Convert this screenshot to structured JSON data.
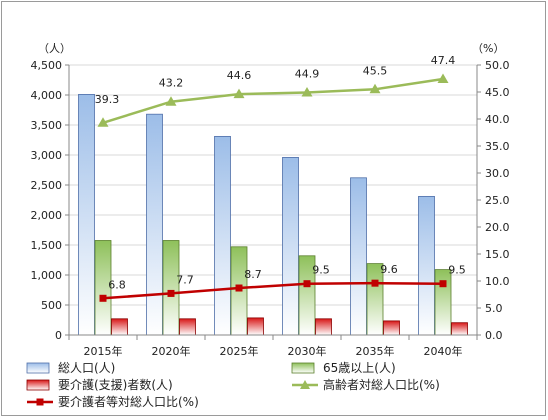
{
  "chart_data": {
    "type": "bar",
    "categories": [
      "2015年",
      "2020年",
      "2025年",
      "2030年",
      "2035年",
      "2040年"
    ],
    "y_left": {
      "unit": "（人）",
      "ylim": [
        0,
        4500
      ],
      "step": 500,
      "ticks": [
        "0",
        "500",
        "1,000",
        "1,500",
        "2,000",
        "2,500",
        "3,000",
        "3,500",
        "4,000",
        "4,500"
      ]
    },
    "y_right": {
      "unit": "（%）",
      "ylim": [
        0,
        50
      ],
      "step": 5,
      "ticks": [
        "0.0",
        "5.0",
        "10.0",
        "15.0",
        "20.0",
        "25.0",
        "30.0",
        "35.0",
        "40.0",
        "45.0",
        "50.0"
      ]
    },
    "grid": true,
    "legend_position": "bottom",
    "series": [
      {
        "name": "総人口(人)",
        "kind": "bar",
        "axis": "left",
        "color": "#8eb4e3",
        "values": [
          4010,
          3680,
          3310,
          2960,
          2620,
          2310
        ]
      },
      {
        "name": "65歳以上(人)",
        "kind": "bar",
        "axis": "left",
        "color": "#9bbb59",
        "values": [
          1575,
          1575,
          1470,
          1320,
          1190,
          1090
        ]
      },
      {
        "name": "要介護(支援)者数(人)",
        "kind": "bar",
        "axis": "left",
        "color": "#e02020",
        "values": [
          270,
          270,
          285,
          270,
          235,
          205
        ]
      },
      {
        "name": "高齢者対総人口比(%)",
        "kind": "line",
        "axis": "right",
        "color": "#9bbb59",
        "values": [
          39.3,
          43.2,
          44.6,
          44.9,
          45.5,
          47.4
        ],
        "labels": [
          "39.3",
          "43.2",
          "44.6",
          "44.9",
          "45.5",
          "47.4"
        ]
      },
      {
        "name": "要介護者等対総人口比(%)",
        "kind": "line",
        "axis": "right",
        "color": "#c00000",
        "values": [
          6.8,
          7.7,
          8.7,
          9.5,
          9.6,
          9.5
        ],
        "labels": [
          "6.8",
          "7.7",
          "8.7",
          "9.5",
          "9.6",
          "9.5"
        ]
      }
    ]
  }
}
